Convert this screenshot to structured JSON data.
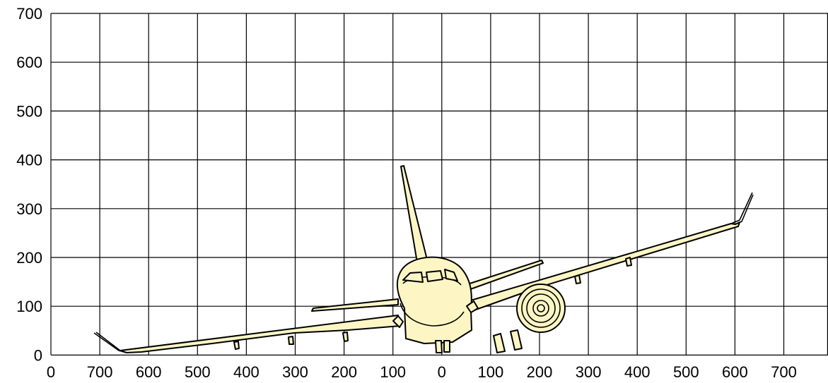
{
  "diagram": {
    "type": "aircraft-clearance-grid",
    "y_ticks": [
      "700",
      "600",
      "500",
      "400",
      "300",
      "200",
      "100",
      "0"
    ],
    "x_ticks": [
      "0",
      "700",
      "600",
      "500",
      "400",
      "300",
      "200",
      "100",
      "0",
      "100",
      "200",
      "300",
      "400",
      "500",
      "600",
      "700"
    ],
    "fill_color": "#fdf6c4",
    "grid": true
  }
}
